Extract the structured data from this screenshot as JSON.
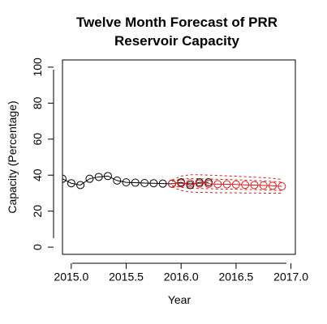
{
  "chart_data": {
    "type": "line",
    "title_lines": [
      "Twelve Month Forecast of PRR",
      "Reservoir Capacity"
    ],
    "xlabel": "Year",
    "ylabel": "Capacity (Percentage)",
    "xlim": [
      2014.92,
      2017.04
    ],
    "ylim": [
      -4,
      104
    ],
    "x_ticks": [
      2015.0,
      2015.5,
      2016.0,
      2016.5,
      2017.0
    ],
    "x_tick_labels": [
      "2015.0",
      "2015.5",
      "2016.0",
      "2016.5",
      "2017.0"
    ],
    "y_ticks": [
      0,
      20,
      40,
      60,
      80,
      100
    ],
    "y_tick_labels": [
      "0",
      "20",
      "40",
      "60",
      "80",
      "100"
    ],
    "grid": false,
    "series": [
      {
        "role": "observed",
        "color": "#000000",
        "x": [
          2014.92,
          2015.0,
          2015.083,
          2015.167,
          2015.25,
          2015.333,
          2015.417,
          2015.5,
          2015.583,
          2015.667,
          2015.75,
          2015.833,
          2015.917,
          2016.0,
          2016.083,
          2016.167,
          2016.25
        ],
        "y": [
          38,
          35.5,
          34.5,
          38,
          39,
          39.5,
          37,
          36,
          35.8,
          35.6,
          35.5,
          35.3,
          35.2,
          36,
          34.5,
          36,
          36
        ]
      },
      {
        "role": "forecast",
        "color": "#e41a1c",
        "x": [
          2015.917,
          2016.0,
          2016.083,
          2016.167,
          2016.25,
          2016.333,
          2016.417,
          2016.5,
          2016.583,
          2016.667,
          2016.75,
          2016.833,
          2016.917
        ],
        "y": [
          35.3,
          35.5,
          35.4,
          35.3,
          35.2,
          35.0,
          34.9,
          34.8,
          34.6,
          34.5,
          34.3,
          34.1,
          33.8
        ]
      },
      {
        "role": "interval",
        "color": "#e41a1c",
        "dash": "3,3",
        "x": [
          2015.917,
          2016.0,
          2016.083,
          2016.167,
          2016.25,
          2016.333,
          2016.417,
          2016.5,
          2016.583,
          2016.667,
          2016.75,
          2016.833,
          2016.917
        ],
        "upper_inner": [
          36.5,
          37.8,
          38.1,
          38.0,
          37.9,
          37.7,
          37.6,
          37.4,
          37.2,
          37.0,
          36.8,
          36.5,
          36.1
        ],
        "lower_inner": [
          34.1,
          33.2,
          32.7,
          32.6,
          32.5,
          32.3,
          32.2,
          32.2,
          32.0,
          32.0,
          31.8,
          31.7,
          31.5
        ],
        "upper_outer": [
          37.2,
          39.5,
          40.2,
          40.2,
          40.0,
          39.8,
          39.6,
          39.4,
          39.1,
          38.9,
          38.6,
          38.2,
          37.6
        ],
        "lower_outer": [
          33.4,
          31.5,
          30.6,
          30.4,
          30.4,
          30.2,
          30.2,
          30.2,
          30.1,
          30.1,
          30.0,
          30.0,
          30.0
        ]
      }
    ]
  }
}
